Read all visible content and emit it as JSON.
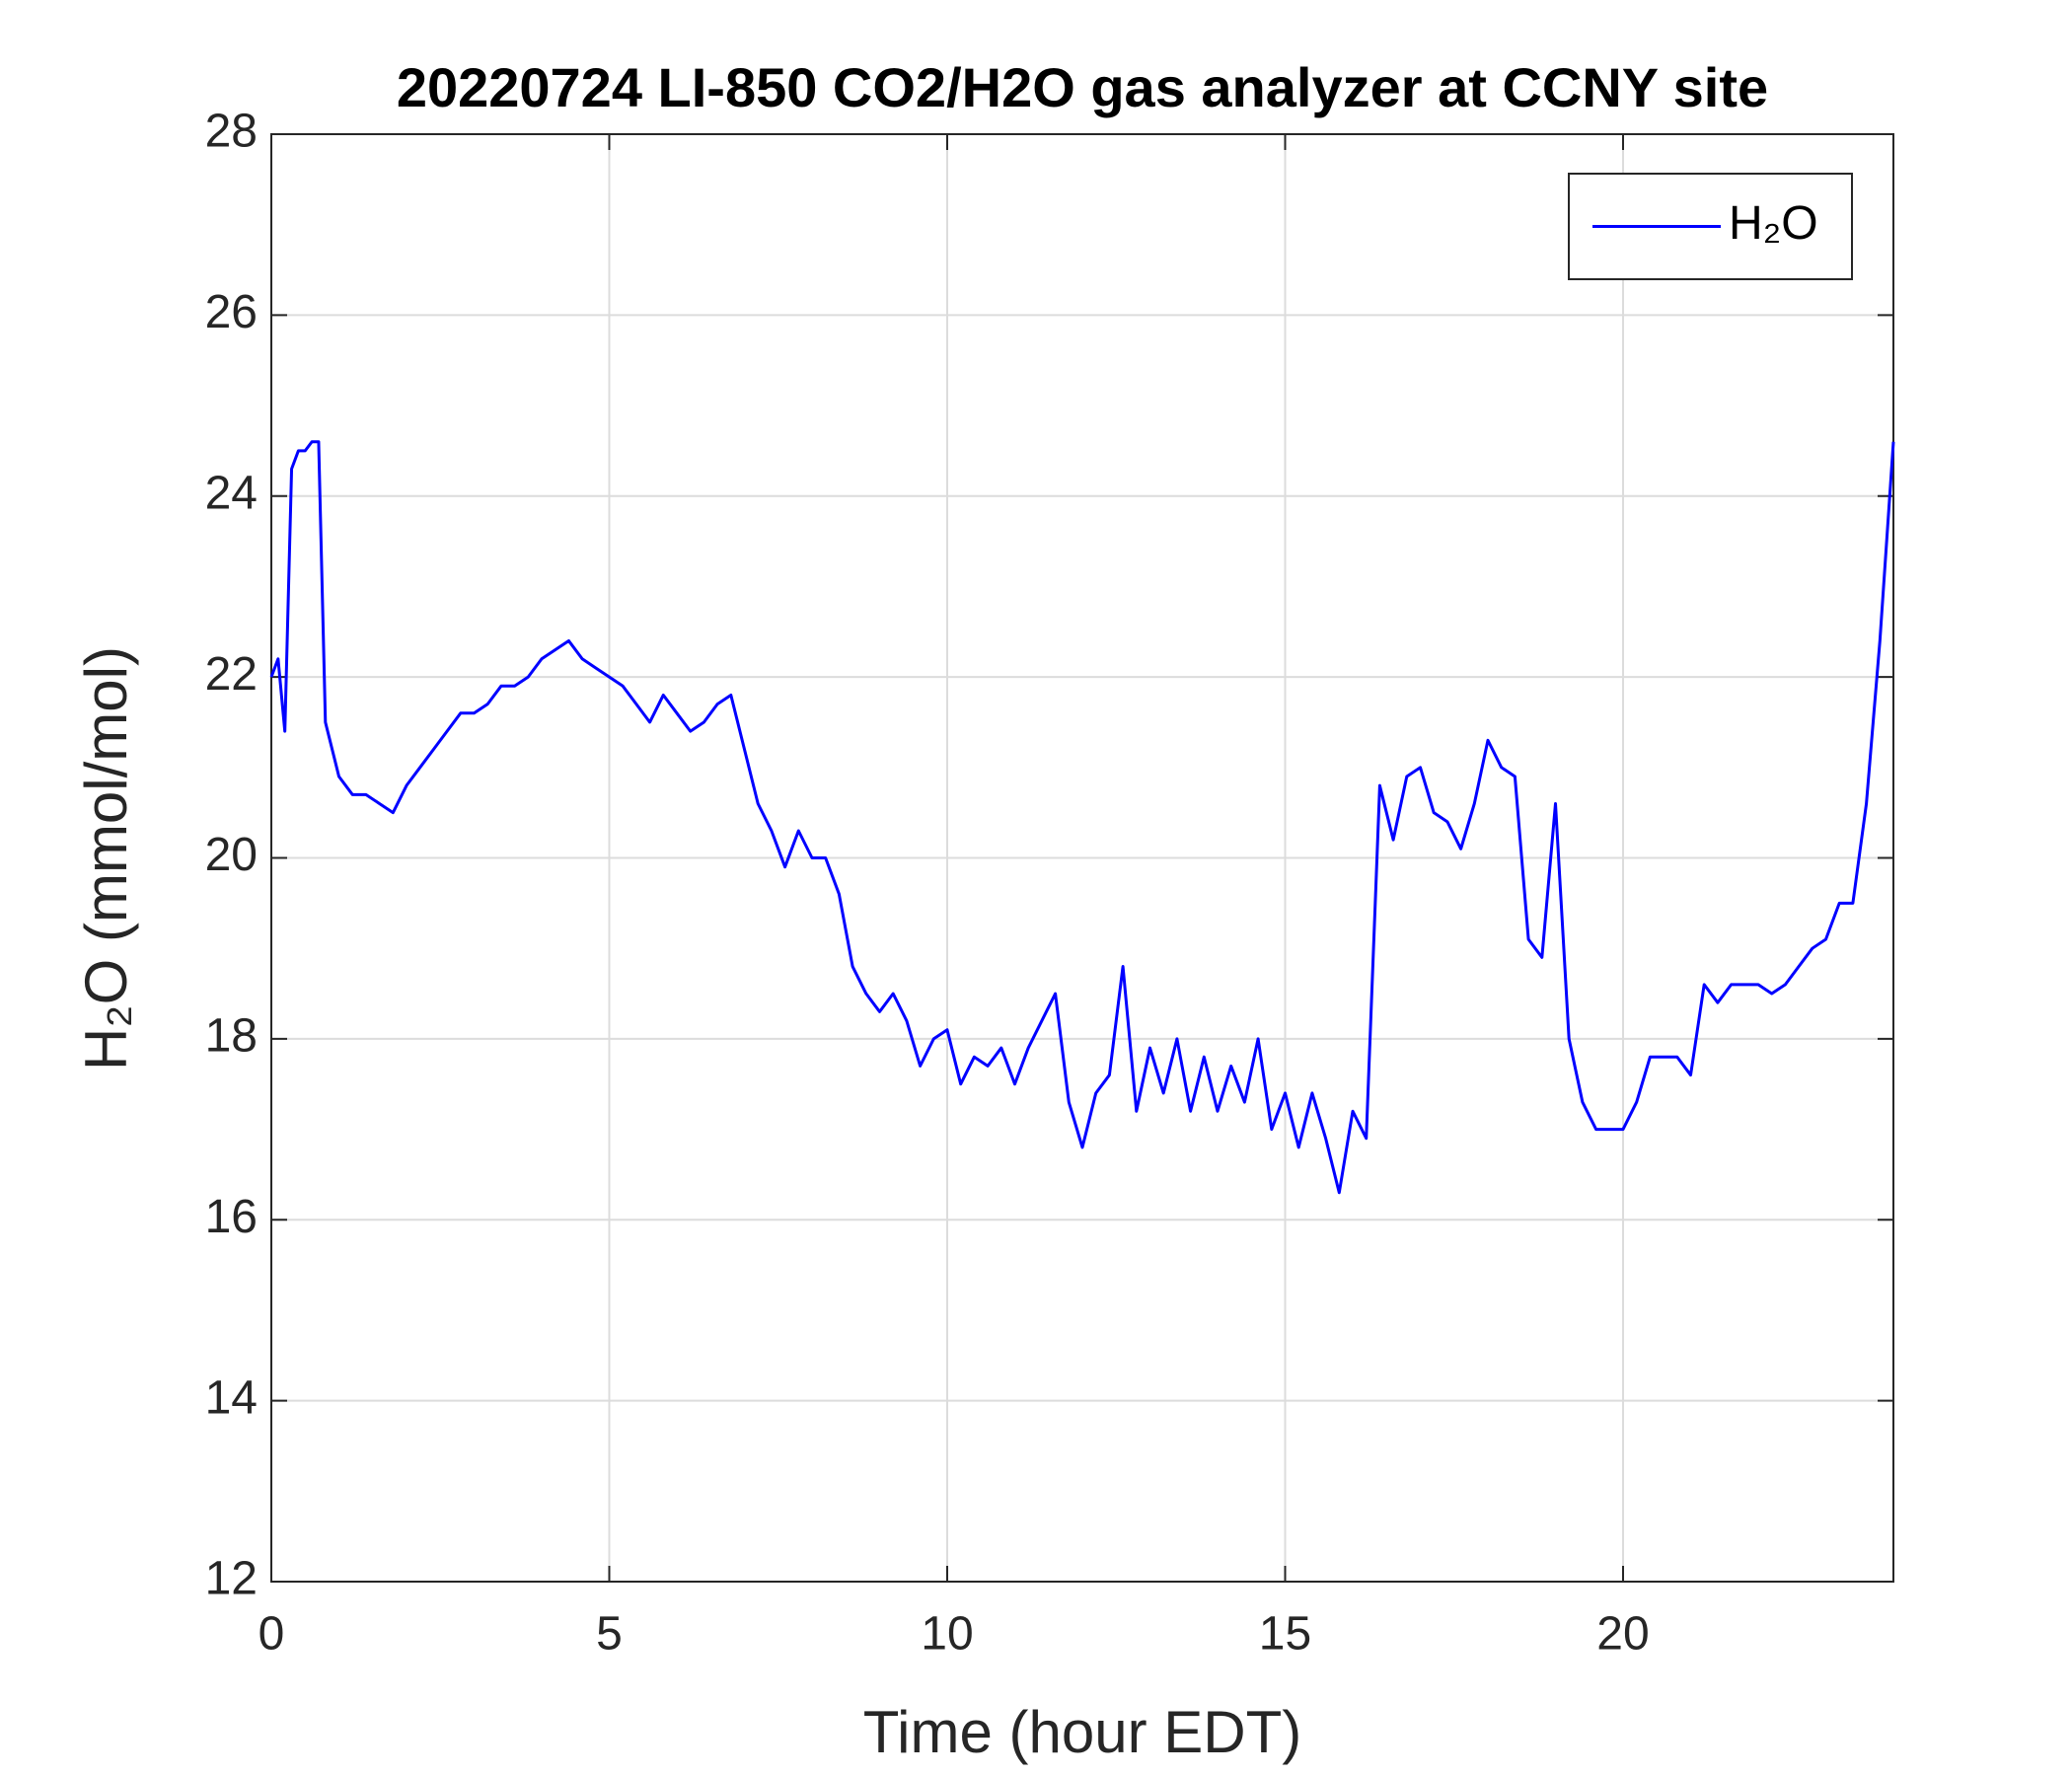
{
  "chart_data": {
    "type": "line",
    "title": "20220724 LI-850 CO2/H2O gas analyzer at CCNY site",
    "x_label": "Time (hour EDT)",
    "y_label": "H₂O (mmol/mol)",
    "xlim": [
      0,
      24
    ],
    "xticks": [
      0,
      5,
      10,
      15,
      20
    ],
    "ylim": [
      12,
      28
    ],
    "yticks": [
      12,
      14,
      16,
      18,
      20,
      22,
      24,
      26,
      28
    ],
    "grid": true,
    "legend": "upper right",
    "x": [
      0,
      0.1,
      0.2,
      0.3,
      0.4,
      0.5,
      0.6,
      0.7,
      0.8,
      1.0,
      1.2,
      1.4,
      1.6,
      1.8,
      2.0,
      2.2,
      2.4,
      2.6,
      2.8,
      3.0,
      3.2,
      3.4,
      3.6,
      3.8,
      4.0,
      4.2,
      4.4,
      4.6,
      4.8,
      5.0,
      5.2,
      5.4,
      5.6,
      5.8,
      6.0,
      6.2,
      6.4,
      6.6,
      6.8,
      7.0,
      7.2,
      7.4,
      7.6,
      7.8,
      8.0,
      8.2,
      8.4,
      8.6,
      8.8,
      9.0,
      9.2,
      9.4,
      9.6,
      9.8,
      10.0,
      10.2,
      10.4,
      10.6,
      10.8,
      11.0,
      11.2,
      11.4,
      11.6,
      11.8,
      12.0,
      12.2,
      12.4,
      12.6,
      12.8,
      13.0,
      13.2,
      13.4,
      13.6,
      13.8,
      14.0,
      14.2,
      14.4,
      14.6,
      14.8,
      15.0,
      15.2,
      15.4,
      15.6,
      15.8,
      16.0,
      16.2,
      16.4,
      16.6,
      16.8,
      17.0,
      17.2,
      17.4,
      17.6,
      17.8,
      18.0,
      18.2,
      18.4,
      18.6,
      18.8,
      19.0,
      19.2,
      19.4,
      19.6,
      19.8,
      20.0,
      20.2,
      20.4,
      20.6,
      20.8,
      21.0,
      21.2,
      21.4,
      21.6,
      21.8,
      22.0,
      22.2,
      22.4,
      22.6,
      22.8,
      23.0,
      23.2,
      23.4,
      23.6,
      23.8,
      24.0
    ],
    "series": [
      {
        "name": "H₂O",
        "color": "#0000ff",
        "values": [
          22.0,
          22.2,
          21.4,
          24.3,
          24.5,
          24.5,
          24.6,
          24.6,
          21.5,
          20.9,
          20.7,
          20.7,
          20.6,
          20.5,
          20.8,
          21.0,
          21.2,
          21.4,
          21.6,
          21.6,
          21.7,
          21.9,
          21.9,
          22.0,
          22.2,
          22.3,
          22.4,
          22.2,
          22.1,
          22.0,
          21.9,
          21.7,
          21.5,
          21.8,
          21.6,
          21.4,
          21.5,
          21.7,
          21.8,
          21.2,
          20.6,
          20.3,
          19.9,
          20.3,
          20.0,
          20.0,
          19.6,
          18.8,
          18.5,
          18.3,
          18.5,
          18.2,
          17.7,
          18.0,
          18.1,
          17.5,
          17.8,
          17.7,
          17.9,
          17.5,
          17.9,
          18.2,
          18.5,
          17.3,
          16.8,
          17.4,
          17.6,
          18.8,
          17.2,
          17.9,
          17.4,
          18.0,
          17.2,
          17.8,
          17.2,
          17.7,
          17.3,
          18.0,
          17.0,
          17.4,
          16.8,
          17.4,
          16.9,
          16.3,
          17.2,
          16.9,
          20.8,
          20.2,
          20.9,
          21.0,
          20.5,
          20.4,
          20.1,
          20.6,
          21.3,
          21.0,
          20.9,
          19.1,
          18.9,
          20.6,
          18.0,
          17.3,
          17.0,
          17.0,
          17.0,
          17.3,
          17.8,
          17.8,
          17.8,
          17.6,
          18.6,
          18.4,
          18.6,
          18.6,
          18.6,
          18.5,
          18.6,
          18.8,
          19.0,
          19.1,
          19.5,
          19.5,
          20.6,
          22.4,
          24.6
        ]
      }
    ]
  }
}
